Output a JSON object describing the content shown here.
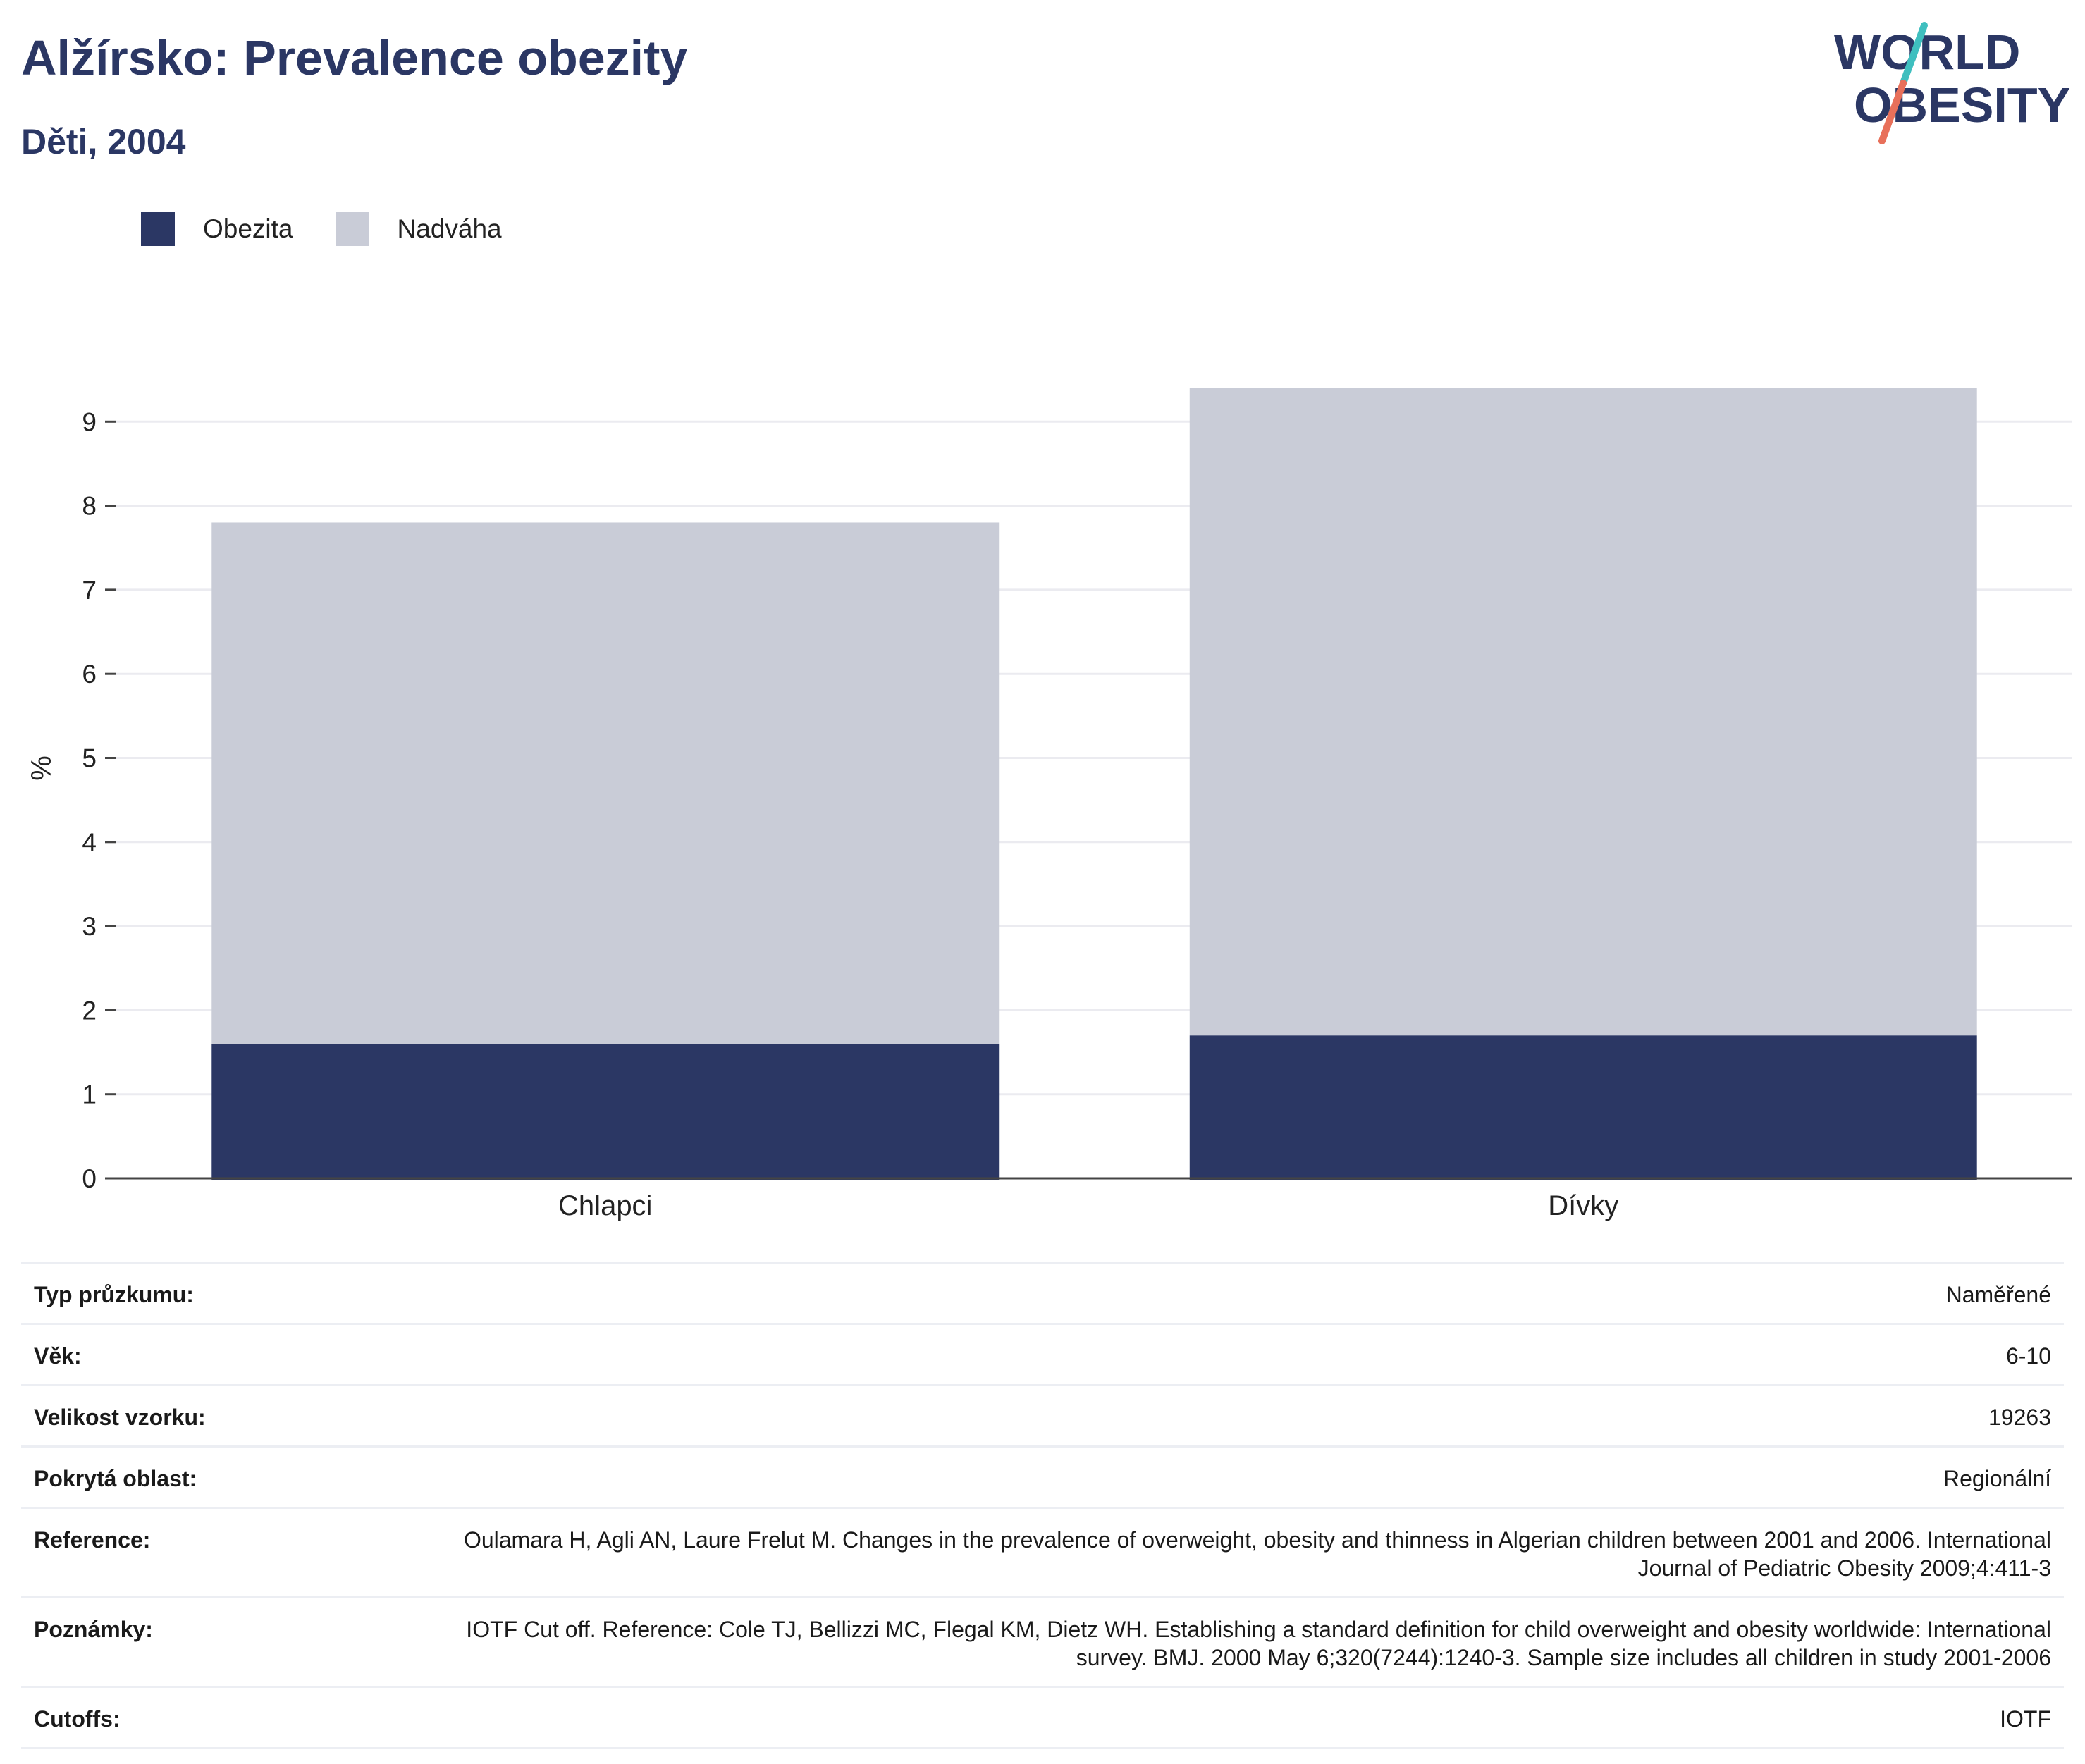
{
  "header": {
    "title": "Alžírsko: Prevalence obezity",
    "subtitle": "Děti, 2004"
  },
  "logo": {
    "line1": "WORLD",
    "line2": "OBESITY"
  },
  "colors": {
    "obezita": "#2b3764",
    "nadvaha": "#c9ccd7",
    "title": "#2b3764",
    "logo_teal": "#3fbfbf",
    "logo_coral": "#e8705a"
  },
  "legend": [
    {
      "label": "Obezita",
      "color": "#2b3764"
    },
    {
      "label": "Nadváha",
      "color": "#c9ccd7"
    }
  ],
  "chart_data": {
    "type": "bar",
    "stacked": true,
    "categories": [
      "Chlapci",
      "Dívky"
    ],
    "series": [
      {
        "name": "Obezita",
        "values": [
          1.6,
          1.7
        ]
      },
      {
        "name": "Nadváha",
        "values": [
          6.2,
          7.7
        ]
      }
    ],
    "ylabel": "%",
    "ylim": [
      0,
      9.6
    ],
    "yticks": [
      0,
      1,
      2,
      3,
      4,
      5,
      6,
      7,
      8,
      9
    ],
    "grid": true,
    "legend_position": "top-left"
  },
  "meta": [
    {
      "label": "Typ průzkumu:",
      "value": "Naměřené"
    },
    {
      "label": "Věk:",
      "value": "6-10"
    },
    {
      "label": "Velikost vzorku:",
      "value": "19263"
    },
    {
      "label": "Pokrytá oblast:",
      "value": "Regionální"
    },
    {
      "label": "Reference:",
      "value": "Oulamara H, Agli AN, Laure Frelut M. Changes in the prevalence of overweight, obesity and thinness in Algerian children between 2001 and 2006. International Journal of Pediatric Obesity 2009;4:411-3"
    },
    {
      "label": "Poznámky:",
      "value": "IOTF Cut off. Reference: Cole TJ, Bellizzi MC, Flegal KM, Dietz WH. Establishing a standard definition for child overweight and obesity worldwide: International survey. BMJ. 2000 May 6;320(7244):1240-3. Sample size includes all children in study 2001-2006"
    },
    {
      "label": "Cutoffs:",
      "value": "IOTF"
    }
  ]
}
